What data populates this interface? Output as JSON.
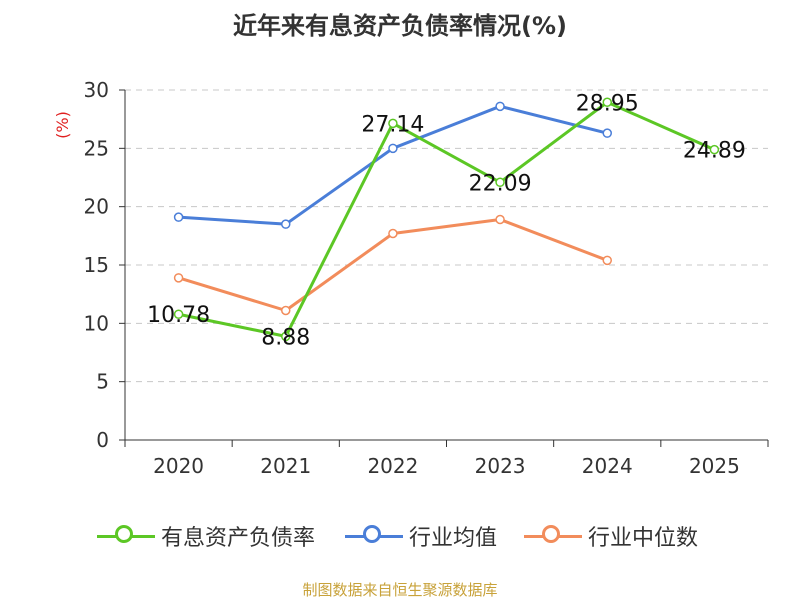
{
  "title": "近年来有息资产负债率情况(%)",
  "source": "制图数据来自恒生聚源数据库",
  "chart_data": {
    "type": "line",
    "ylabel": "(%)",
    "ylim": [
      0,
      30
    ],
    "yticks": [
      "0",
      "5",
      "10",
      "15",
      "20",
      "25",
      "30"
    ],
    "grid": true,
    "legend_position": "bottom",
    "categories": [
      "2020",
      "2021",
      "2022",
      "2023",
      "2024",
      "2025"
    ],
    "series": [
      {
        "name": "有息资产负债率",
        "color": "#5cc725",
        "values": [
          10.78,
          8.88,
          27.14,
          22.09,
          28.95,
          24.89
        ],
        "labels": [
          "10.78",
          "8.88",
          "27.14",
          "22.09",
          "28.95",
          "24.89"
        ]
      },
      {
        "name": "行业均值",
        "color": "#4a7ed8",
        "values": [
          19.1,
          18.5,
          25.0,
          28.6,
          26.3,
          null
        ]
      },
      {
        "name": "行业中位数",
        "color": "#f28c5b",
        "values": [
          13.9,
          11.1,
          17.7,
          18.9,
          15.4,
          null
        ]
      }
    ]
  }
}
